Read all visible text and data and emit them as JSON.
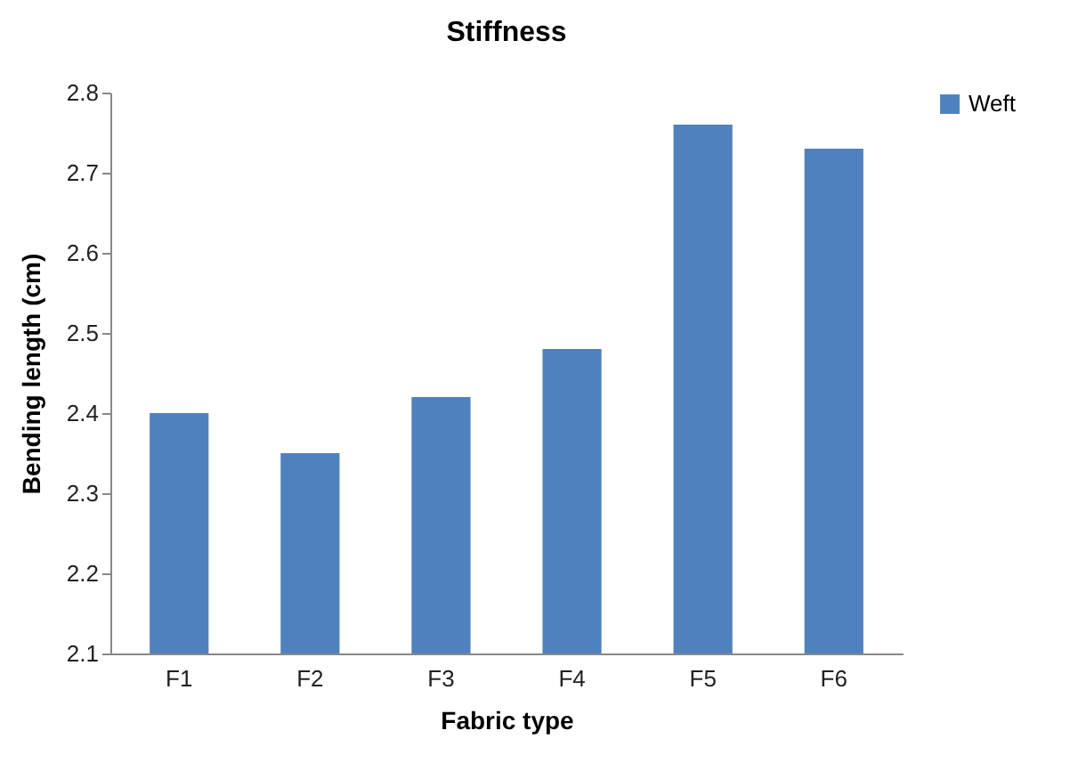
{
  "chart_data": {
    "type": "bar",
    "title": "Stiffness",
    "xlabel": "Fabric type",
    "ylabel": "Bending length (cm)",
    "categories": [
      "F1",
      "F2",
      "F3",
      "F4",
      "F5",
      "F6"
    ],
    "series": [
      {
        "name": "Weft",
        "color": "#4f81bd",
        "values": [
          2.4,
          2.35,
          2.42,
          2.48,
          2.76,
          2.73
        ]
      }
    ],
    "ylim": [
      2.1,
      2.8
    ],
    "yticks": [
      2.1,
      2.2,
      2.3,
      2.4,
      2.5,
      2.6,
      2.7,
      2.8
    ],
    "grid": false,
    "legend": "right"
  }
}
